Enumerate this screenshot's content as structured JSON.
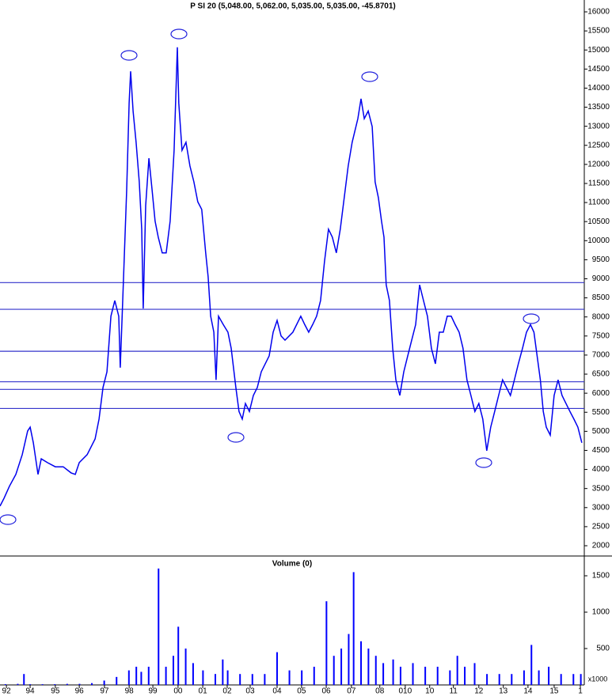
{
  "chart_data": [
    {
      "type": "line",
      "title": "P SI 20 (5,048.00, 5,062.00, 5,035.00, 5,035.00, -45.8701)",
      "color": "#0000ee",
      "xlim": [
        1992.78,
        2016.44
      ],
      "ylim": [
        2000,
        16000
      ],
      "yticks": [
        2000,
        2500,
        3000,
        3500,
        4000,
        4500,
        5000,
        5500,
        6000,
        6500,
        7000,
        7500,
        8000,
        8500,
        9000,
        9500,
        10000,
        10500,
        11000,
        11500,
        12000,
        12500,
        13000,
        13500,
        14000,
        14500,
        15000,
        15500,
        16000
      ],
      "hlines": [
        8900,
        8200,
        7100,
        6300,
        6100,
        5600
      ],
      "hline_color": "#3333cc",
      "x": [
        1992.78,
        1992.94,
        1993.16,
        1993.42,
        1993.68,
        1993.9,
        1994.0,
        1994.13,
        1994.32,
        1994.45,
        1994.7,
        1995.02,
        1995.34,
        1995.66,
        1995.83,
        1995.99,
        1996.31,
        1996.63,
        1996.79,
        1996.95,
        1997.11,
        1997.27,
        1997.43,
        1997.59,
        1997.65,
        1997.75,
        1997.91,
        1998.01,
        1998.07,
        1998.17,
        1998.29,
        1998.42,
        1998.52,
        1998.58,
        1998.68,
        1998.81,
        1998.94,
        1999.06,
        1999.19,
        1999.35,
        1999.51,
        1999.67,
        1999.83,
        1999.96,
        2000.02,
        2000.15,
        2000.31,
        2000.47,
        2000.63,
        2000.79,
        2000.95,
        2001.11,
        2001.21,
        2001.31,
        2001.44,
        2001.53,
        2001.63,
        2001.82,
        2002.01,
        2002.14,
        2002.33,
        2002.46,
        2002.59,
        2002.72,
        2002.88,
        2003.04,
        2003.2,
        2003.36,
        2003.68,
        2003.84,
        2004.0,
        2004.16,
        2004.32,
        2004.64,
        2004.96,
        2005.12,
        2005.28,
        2005.44,
        2005.6,
        2005.76,
        2005.92,
        2006.08,
        2006.24,
        2006.4,
        2006.56,
        2006.72,
        2006.88,
        2007.04,
        2007.27,
        2007.4,
        2007.53,
        2007.69,
        2007.85,
        2007.97,
        2008.1,
        2008.23,
        2008.33,
        2008.42,
        2008.55,
        2008.68,
        2008.81,
        2008.97,
        2009.13,
        2009.29,
        2009.45,
        2009.61,
        2009.77,
        2009.93,
        2010.09,
        2010.25,
        2010.41,
        2010.57,
        2010.73,
        2010.89,
        2011.05,
        2011.21,
        2011.37,
        2011.53,
        2011.69,
        2011.85,
        2012.01,
        2012.17,
        2012.33,
        2012.49,
        2012.65,
        2012.81,
        2012.97,
        2013.13,
        2013.29,
        2013.45,
        2013.61,
        2013.77,
        2013.94,
        2014.1,
        2014.26,
        2014.4,
        2014.53,
        2014.66,
        2014.78,
        2014.9,
        2015.06,
        2015.22,
        2015.38,
        2015.54,
        2015.7,
        2015.86,
        2016.02,
        2016.18,
        2016.34
      ],
      "values": [
        3040,
        3240,
        3560,
        3870,
        4390,
        5010,
        5110,
        4700,
        3870,
        4280,
        4180,
        4070,
        4070,
        3910,
        3870,
        4180,
        4390,
        4800,
        5320,
        6150,
        6560,
        8020,
        8430,
        8020,
        6670,
        8430,
        11330,
        13610,
        14440,
        13400,
        12580,
        11540,
        10300,
        8220,
        10920,
        12160,
        11330,
        10510,
        10090,
        9680,
        9680,
        10510,
        12370,
        15070,
        13610,
        12370,
        12580,
        11960,
        11540,
        11020,
        10820,
        9680,
        9050,
        8020,
        7600,
        6350,
        8020,
        7800,
        7600,
        7180,
        6150,
        5520,
        5320,
        5730,
        5520,
        5940,
        6150,
        6560,
        6980,
        7600,
        7910,
        7500,
        7390,
        7600,
        8020,
        7800,
        7600,
        7800,
        8020,
        8430,
        9460,
        10300,
        10090,
        9680,
        10300,
        11130,
        11960,
        12580,
        13200,
        13720,
        13200,
        13400,
        12990,
        11540,
        11130,
        10510,
        10090,
        8840,
        8430,
        7180,
        6350,
        5940,
        6560,
        6980,
        7390,
        7800,
        8840,
        8430,
        8020,
        7180,
        6770,
        7600,
        7600,
        8020,
        8020,
        7800,
        7600,
        7180,
        6350,
        5940,
        5520,
        5730,
        5320,
        4490,
        5110,
        5520,
        5940,
        6350,
        6150,
        5940,
        6350,
        6770,
        7180,
        7600,
        7800,
        7600,
        6980,
        6350,
        5520,
        5110,
        4900,
        5940,
        6350,
        5940,
        5730,
        5520,
        5320,
        5110,
        4700
      ]
    },
    {
      "type": "bar",
      "title": "Volume (0)",
      "color": "#0000ff",
      "unit_label": "x1000",
      "xlim": [
        1992.78,
        2016.44
      ],
      "ylim": [
        0,
        1750
      ],
      "yticks": [
        500,
        1000,
        1500
      ],
      "xticks": [
        {
          "value": 1993.04,
          "label": "92"
        },
        {
          "value": 1994.0,
          "label": "94"
        },
        {
          "value": 1995.02,
          "label": "95"
        },
        {
          "value": 1995.99,
          "label": "96"
        },
        {
          "value": 1997.01,
          "label": "97"
        },
        {
          "value": 1998.01,
          "label": "98"
        },
        {
          "value": 1998.97,
          "label": "99"
        },
        {
          "value": 1999.99,
          "label": "00"
        },
        {
          "value": 2000.99,
          "label": "01"
        },
        {
          "value": 2001.98,
          "label": "02"
        },
        {
          "value": 2002.91,
          "label": "03"
        },
        {
          "value": 2004.0,
          "label": "04"
        },
        {
          "value": 2004.99,
          "label": "05"
        },
        {
          "value": 2005.99,
          "label": "06"
        },
        {
          "value": 2007.01,
          "label": "07"
        },
        {
          "value": 2008.16,
          "label": "08"
        },
        {
          "value": 2009.19,
          "label": "010"
        },
        {
          "value": 2010.18,
          "label": "10"
        },
        {
          "value": 2011.14,
          "label": "11"
        },
        {
          "value": 2012.17,
          "label": "12"
        },
        {
          "value": 2013.16,
          "label": "13"
        },
        {
          "value": 2014.16,
          "label": "14"
        },
        {
          "value": 2015.22,
          "label": "15"
        },
        {
          "value": 2016.28,
          "label": "1"
        }
      ],
      "x": [
        1993.0,
        1993.5,
        1993.75,
        1994.0,
        1994.5,
        1995.0,
        1995.5,
        1996.0,
        1996.5,
        1997.0,
        1997.5,
        1998.0,
        1998.3,
        1998.5,
        1998.8,
        1999.2,
        1999.5,
        1999.8,
        2000.0,
        2000.3,
        2000.6,
        2001.0,
        2001.5,
        2001.8,
        2002.0,
        2002.5,
        2003.0,
        2003.5,
        2004.0,
        2004.5,
        2005.0,
        2005.5,
        2006.0,
        2006.3,
        2006.6,
        2006.9,
        2007.1,
        2007.4,
        2007.7,
        2008.0,
        2008.3,
        2008.7,
        2009.0,
        2009.5,
        2010.0,
        2010.5,
        2011.0,
        2011.3,
        2011.6,
        2012.0,
        2012.5,
        2013.0,
        2013.5,
        2014.0,
        2014.3,
        2014.6,
        2015.0,
        2015.5,
        2016.0,
        2016.3
      ],
      "values": [
        10,
        15,
        150,
        10,
        10,
        10,
        15,
        15,
        25,
        60,
        110,
        200,
        250,
        180,
        250,
        1600,
        250,
        400,
        800,
        500,
        300,
        200,
        150,
        350,
        200,
        150,
        150,
        150,
        450,
        200,
        200,
        250,
        1150,
        400,
        500,
        700,
        1550,
        600,
        500,
        400,
        300,
        350,
        250,
        300,
        250,
        250,
        200,
        400,
        250,
        300,
        150,
        150,
        150,
        200,
        550,
        200,
        250,
        150,
        150,
        150
      ]
    }
  ]
}
